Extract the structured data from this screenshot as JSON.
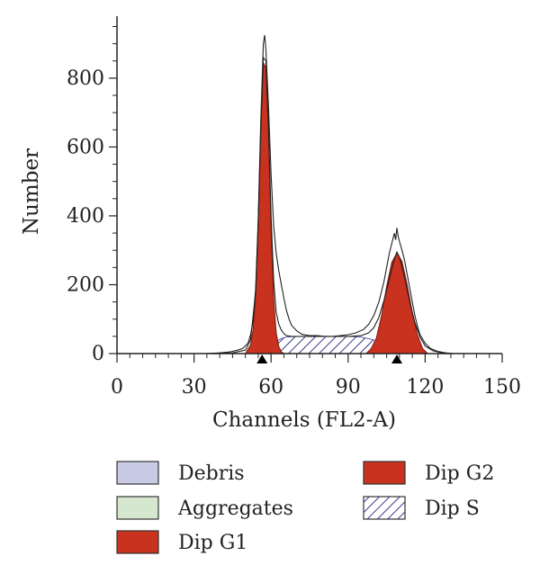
{
  "chart_data": {
    "type": "area",
    "title": "",
    "xlabel": "Channels (FL2-A)",
    "ylabel": "Number",
    "xlim": [
      0,
      150
    ],
    "ylim": [
      0,
      980
    ],
    "xticks": [
      0,
      30,
      60,
      90,
      120,
      150
    ],
    "yticks": [
      0,
      200,
      400,
      600,
      800
    ],
    "colors": {
      "dip_g1": "#c8321e",
      "dip_g2": "#c8321e",
      "dip_s_hatch": "#3a3a8c",
      "debris": "#c9cbe6",
      "aggregates": "#d5e7cf",
      "axis": "#222222",
      "raw_trace": "#222222"
    },
    "marker_x": [
      56.5,
      109
    ],
    "series": [
      {
        "name": "Dip G1",
        "style": "filled",
        "x": [
          50,
          52,
          53,
          54,
          55,
          56,
          57,
          58,
          59,
          60,
          61,
          62,
          63,
          64,
          65
        ],
        "y": [
          0,
          25,
          70,
          170,
          370,
          650,
          845,
          830,
          640,
          360,
          160,
          60,
          20,
          5,
          0
        ]
      },
      {
        "name": "Dip G2",
        "style": "filled",
        "x": [
          97,
          99,
          101,
          103,
          105,
          107,
          109,
          111,
          113,
          115,
          117,
          119,
          121
        ],
        "y": [
          0,
          15,
          45,
          110,
          195,
          265,
          292,
          268,
          200,
          120,
          55,
          15,
          0
        ]
      },
      {
        "name": "Dip S",
        "style": "hatched",
        "x": [
          58,
          60,
          62,
          64,
          66,
          70,
          75,
          80,
          85,
          90,
          95,
          100,
          103,
          106,
          109,
          112
        ],
        "y": [
          0,
          20,
          35,
          44,
          48,
          50,
          50,
          50,
          50,
          50,
          48,
          40,
          28,
          15,
          5,
          0
        ]
      },
      {
        "name": "Debris",
        "style": "filled",
        "x": [],
        "y": []
      },
      {
        "name": "Aggregates",
        "style": "filled",
        "x": [],
        "y": []
      }
    ],
    "raw_trace": {
      "x": [
        35,
        40,
        44,
        47,
        49,
        51,
        52,
        53,
        54,
        55,
        56,
        57,
        57.5,
        58,
        59,
        60,
        61,
        62,
        63,
        64,
        65,
        66,
        67,
        68,
        70,
        72,
        75,
        78,
        81,
        84,
        87,
        90,
        93,
        96,
        98,
        100,
        102,
        104,
        105,
        106,
        107,
        108,
        108.5,
        109,
        109.5,
        110,
        111,
        112,
        113,
        114,
        115,
        116,
        117,
        118,
        120,
        122,
        125,
        128,
        131
      ],
      "y": [
        0,
        2,
        5,
        10,
        15,
        30,
        55,
        95,
        190,
        390,
        680,
        900,
        925,
        880,
        720,
        520,
        370,
        290,
        240,
        200,
        160,
        125,
        100,
        82,
        66,
        56,
        52,
        52,
        50,
        50,
        52,
        55,
        60,
        70,
        85,
        110,
        150,
        210,
        250,
        290,
        320,
        350,
        330,
        365,
        340,
        325,
        300,
        270,
        230,
        190,
        150,
        110,
        80,
        55,
        30,
        15,
        6,
        2,
        0
      ]
    },
    "fit_trace": {
      "x": [
        35,
        45,
        50,
        52,
        54,
        55,
        56,
        57,
        58,
        59,
        60,
        61,
        62,
        63,
        64,
        65,
        66,
        68,
        70,
        75,
        80,
        85,
        90,
        95,
        98,
        100,
        102,
        104,
        106,
        108,
        109,
        110,
        112,
        114,
        116,
        118,
        120,
        123,
        126,
        130
      ],
      "y": [
        0,
        2,
        10,
        40,
        180,
        380,
        660,
        860,
        850,
        660,
        400,
        210,
        120,
        85,
        68,
        58,
        52,
        50,
        50,
        50,
        50,
        50,
        50,
        52,
        60,
        75,
        105,
        155,
        215,
        275,
        295,
        280,
        220,
        150,
        90,
        48,
        22,
        8,
        3,
        0
      ]
    },
    "legend": {
      "columns": [
        [
          "Debris",
          "Aggregates",
          "Dip G1"
        ],
        [
          "Dip G2",
          "Dip S"
        ]
      ]
    }
  }
}
